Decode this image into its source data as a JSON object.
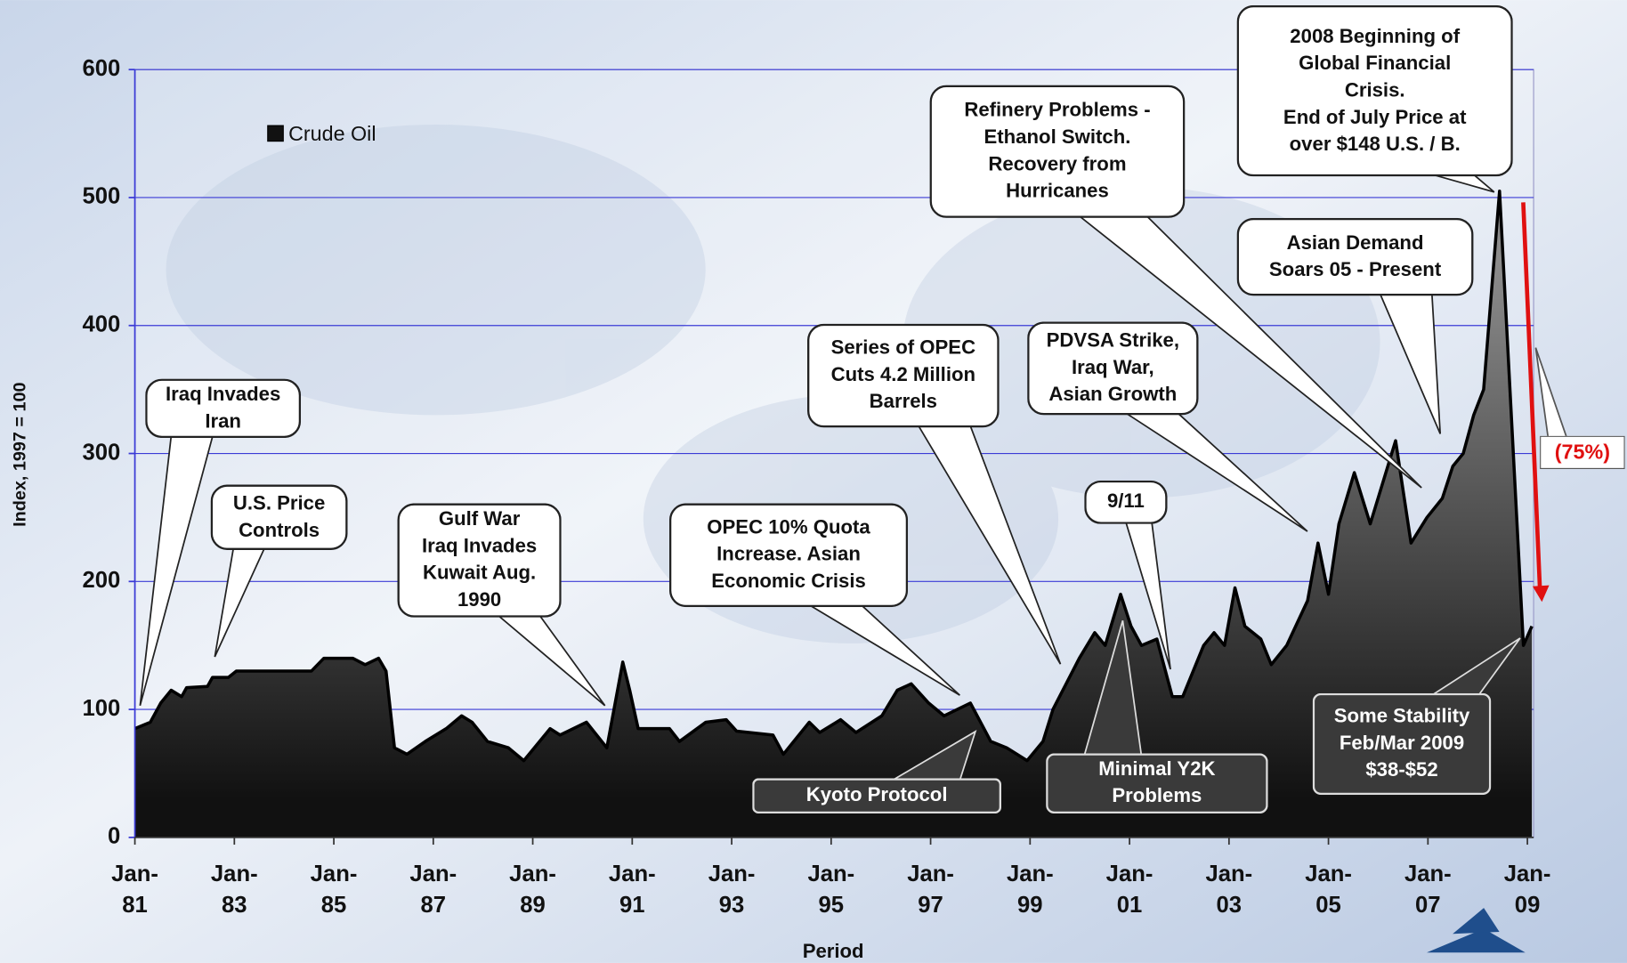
{
  "chart_data": {
    "type": "area",
    "x_label": "Period",
    "y_label": "Index, 1997 = 100",
    "legend": "top-left",
    "grid": true,
    "xlim": [
      1981,
      2009.125
    ],
    "ylim": [
      0,
      600
    ],
    "yticks": [
      0,
      100,
      200,
      300,
      400,
      500,
      600
    ],
    "xticks": [
      {
        "value": 1981,
        "label": "Jan-\n81"
      },
      {
        "value": 1983,
        "label": "Jan-\n83"
      },
      {
        "value": 1985,
        "label": "Jan-\n85"
      },
      {
        "value": 1987,
        "label": "Jan-\n87"
      },
      {
        "value": 1989,
        "label": "Jan-\n89"
      },
      {
        "value": 1991,
        "label": "Jan-\n91"
      },
      {
        "value": 1993,
        "label": "Jan-\n93"
      },
      {
        "value": 1995,
        "label": "Jan-\n95"
      },
      {
        "value": 1997,
        "label": "Jan-\n97"
      },
      {
        "value": 1999,
        "label": "Jan-\n99"
      },
      {
        "value": 2001,
        "label": "Jan-\n01"
      },
      {
        "value": 2003,
        "label": "Jan-\n03"
      },
      {
        "value": 2005,
        "label": "Jan-\n05"
      },
      {
        "value": 2007,
        "label": "Jan-\n07"
      },
      {
        "value": 2009,
        "label": "Jan-\n09"
      }
    ],
    "x": [
      1981.0,
      1981.31,
      1981.52,
      1981.73,
      1981.94,
      1982.04,
      1982.46,
      1982.56,
      1982.88,
      1983.04,
      1984.55,
      1984.8,
      1985.38,
      1985.63,
      1985.9,
      1986.05,
      1986.22,
      1986.47,
      1986.84,
      1987.26,
      1987.57,
      1987.78,
      1988.09,
      1988.51,
      1988.82,
      1989.35,
      1989.55,
      1990.08,
      1990.49,
      1990.81,
      1990.95,
      1991.12,
      1991.75,
      1991.95,
      1992.48,
      1992.89,
      1993.1,
      1993.83,
      1994.04,
      1994.56,
      1994.77,
      1995.19,
      1995.5,
      1996.02,
      1996.33,
      1996.61,
      1996.96,
      1997.27,
      1997.8,
      1998.21,
      1998.53,
      1998.94,
      1999.26,
      1999.46,
      1999.99,
      2000.3,
      2000.51,
      2000.82,
      2001.03,
      2001.24,
      2001.55,
      2001.86,
      2002.07,
      2002.49,
      2002.7,
      2002.91,
      2003.12,
      2003.32,
      2003.64,
      2003.85,
      2004.16,
      2004.58,
      2004.79,
      2005.0,
      2005.21,
      2005.52,
      2005.84,
      2006.35,
      2006.66,
      2006.98,
      2007.29,
      2007.5,
      2007.71,
      2007.92,
      2008.12,
      2008.44,
      2008.92,
      2009.09
    ],
    "series": [
      {
        "name": "Crude Oil",
        "color": "#111111",
        "values": [
          85,
          90,
          105,
          115,
          110,
          117,
          118,
          125,
          125,
          130,
          130,
          140,
          140,
          135,
          140,
          130,
          70,
          65,
          75,
          85,
          95,
          90,
          75,
          70,
          60,
          85,
          80,
          90,
          70,
          137,
          115,
          85,
          85,
          75,
          90,
          92,
          83,
          80,
          65,
          90,
          82,
          92,
          82,
          95,
          115,
          120,
          105,
          95,
          105,
          75,
          70,
          60,
          75,
          100,
          140,
          160,
          150,
          190,
          165,
          150,
          155,
          110,
          110,
          150,
          160,
          150,
          195,
          165,
          155,
          135,
          150,
          185,
          230,
          190,
          245,
          285,
          245,
          310,
          230,
          250,
          265,
          290,
          300,
          330,
          350,
          505,
          150,
          165
        ]
      }
    ],
    "annotations": [
      "Iraq Invades\nIran",
      "U.S. Price\nControls",
      "Gulf War\nIraq Invades\nKuwait  Aug.\n1990",
      "OPEC 10% Quota\nIncrease. Asian\nEconomic Crisis",
      "Series of OPEC\nCuts 4.2 Million\nBarrels",
      "PDVSA Strike,\nIraq War,\nAsian Growth",
      "9/11",
      "Refinery Problems -\nEthanol Switch.\nRecovery from\nHurricanes",
      "2008 Beginning of\nGlobal Financial\nCrisis.\nEnd of July Price at\nover $148 U.S. / B.",
      "Asian Demand\nSoars 05 - Present",
      "Kyoto Protocol",
      "Minimal Y2K\nProblems",
      "Some Stability\nFeb/Mar 2009\n$38-$52",
      "(75%)"
    ]
  }
}
